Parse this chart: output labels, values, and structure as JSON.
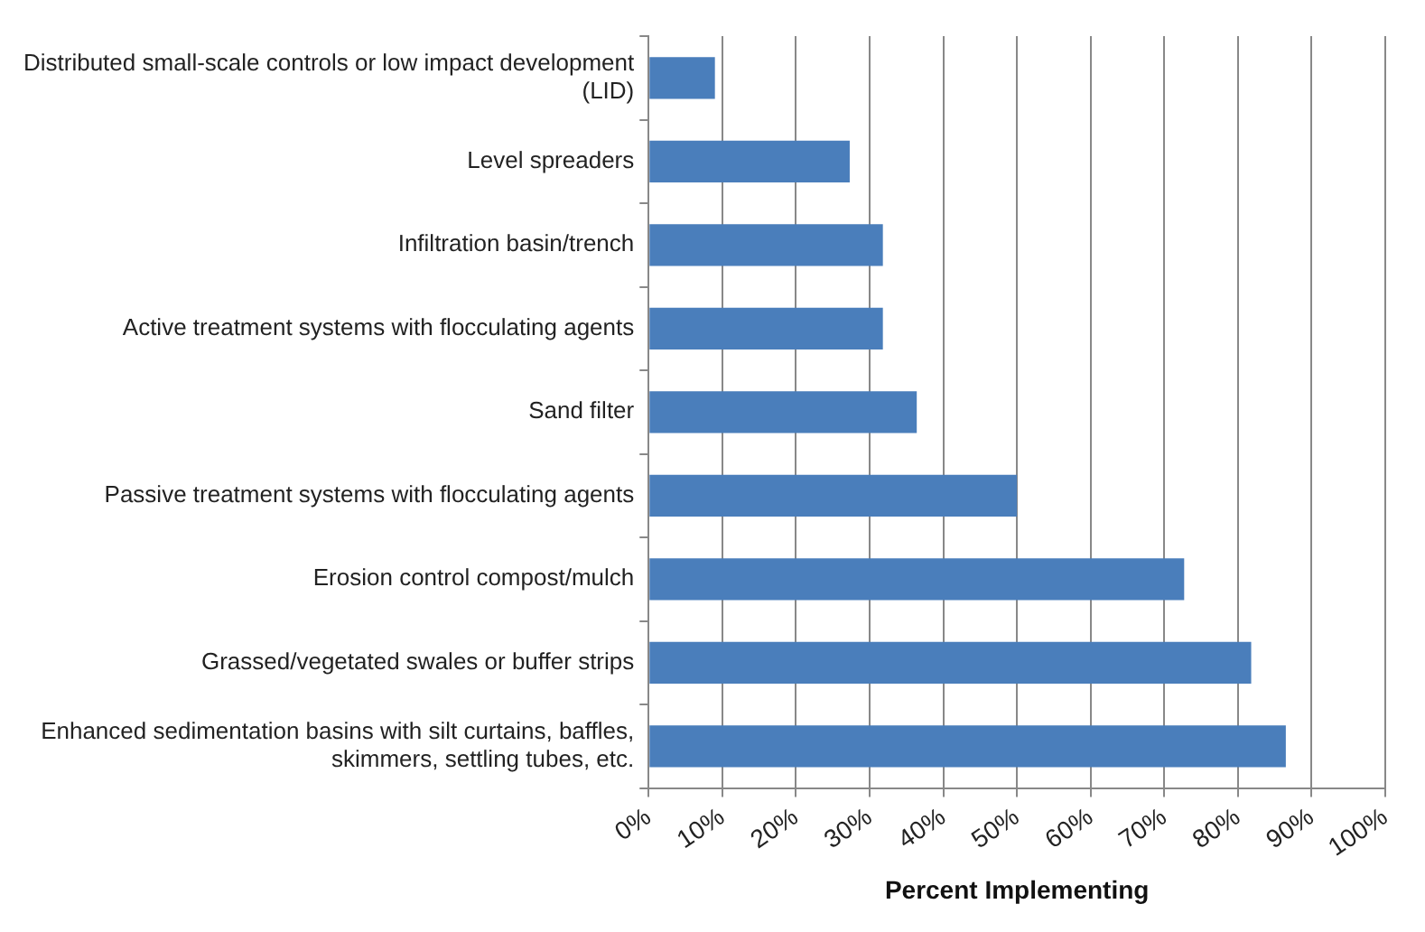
{
  "chart_data": {
    "type": "bar",
    "orientation": "horizontal",
    "xlabel": "Percent Implementing",
    "categories": [
      "Distributed small-scale controls or low impact development (LID)",
      "Level spreaders",
      "Infiltration basin/trench",
      "Active treatment systems with flocculating agents",
      "Sand filter",
      "Passive treatment systems with flocculating agents",
      "Erosion control compost/mulch",
      "Grassed/vegetated swales or buffer strips",
      "Enhanced sedimentation basins with silt curtains, baffles, skimmers, settling tubes, etc."
    ],
    "values": [
      9,
      27.3,
      31.8,
      31.8,
      36.4,
      50,
      72.7,
      81.8,
      86.5
    ],
    "color": "#4a7ebb",
    "xlim": [
      0,
      100
    ],
    "xticks": [
      {
        "value": 0,
        "label": "0%"
      },
      {
        "value": 10,
        "label": "10%"
      },
      {
        "value": 20,
        "label": "20%"
      },
      {
        "value": 30,
        "label": "30%"
      },
      {
        "value": 40,
        "label": "40%"
      },
      {
        "value": 50,
        "label": "50%"
      },
      {
        "value": 60,
        "label": "60%"
      },
      {
        "value": 70,
        "label": "70%"
      },
      {
        "value": 80,
        "label": "80%"
      },
      {
        "value": 90,
        "label": "90%"
      },
      {
        "value": 100,
        "label": "100%"
      }
    ],
    "grid": "x",
    "legend": false
  }
}
